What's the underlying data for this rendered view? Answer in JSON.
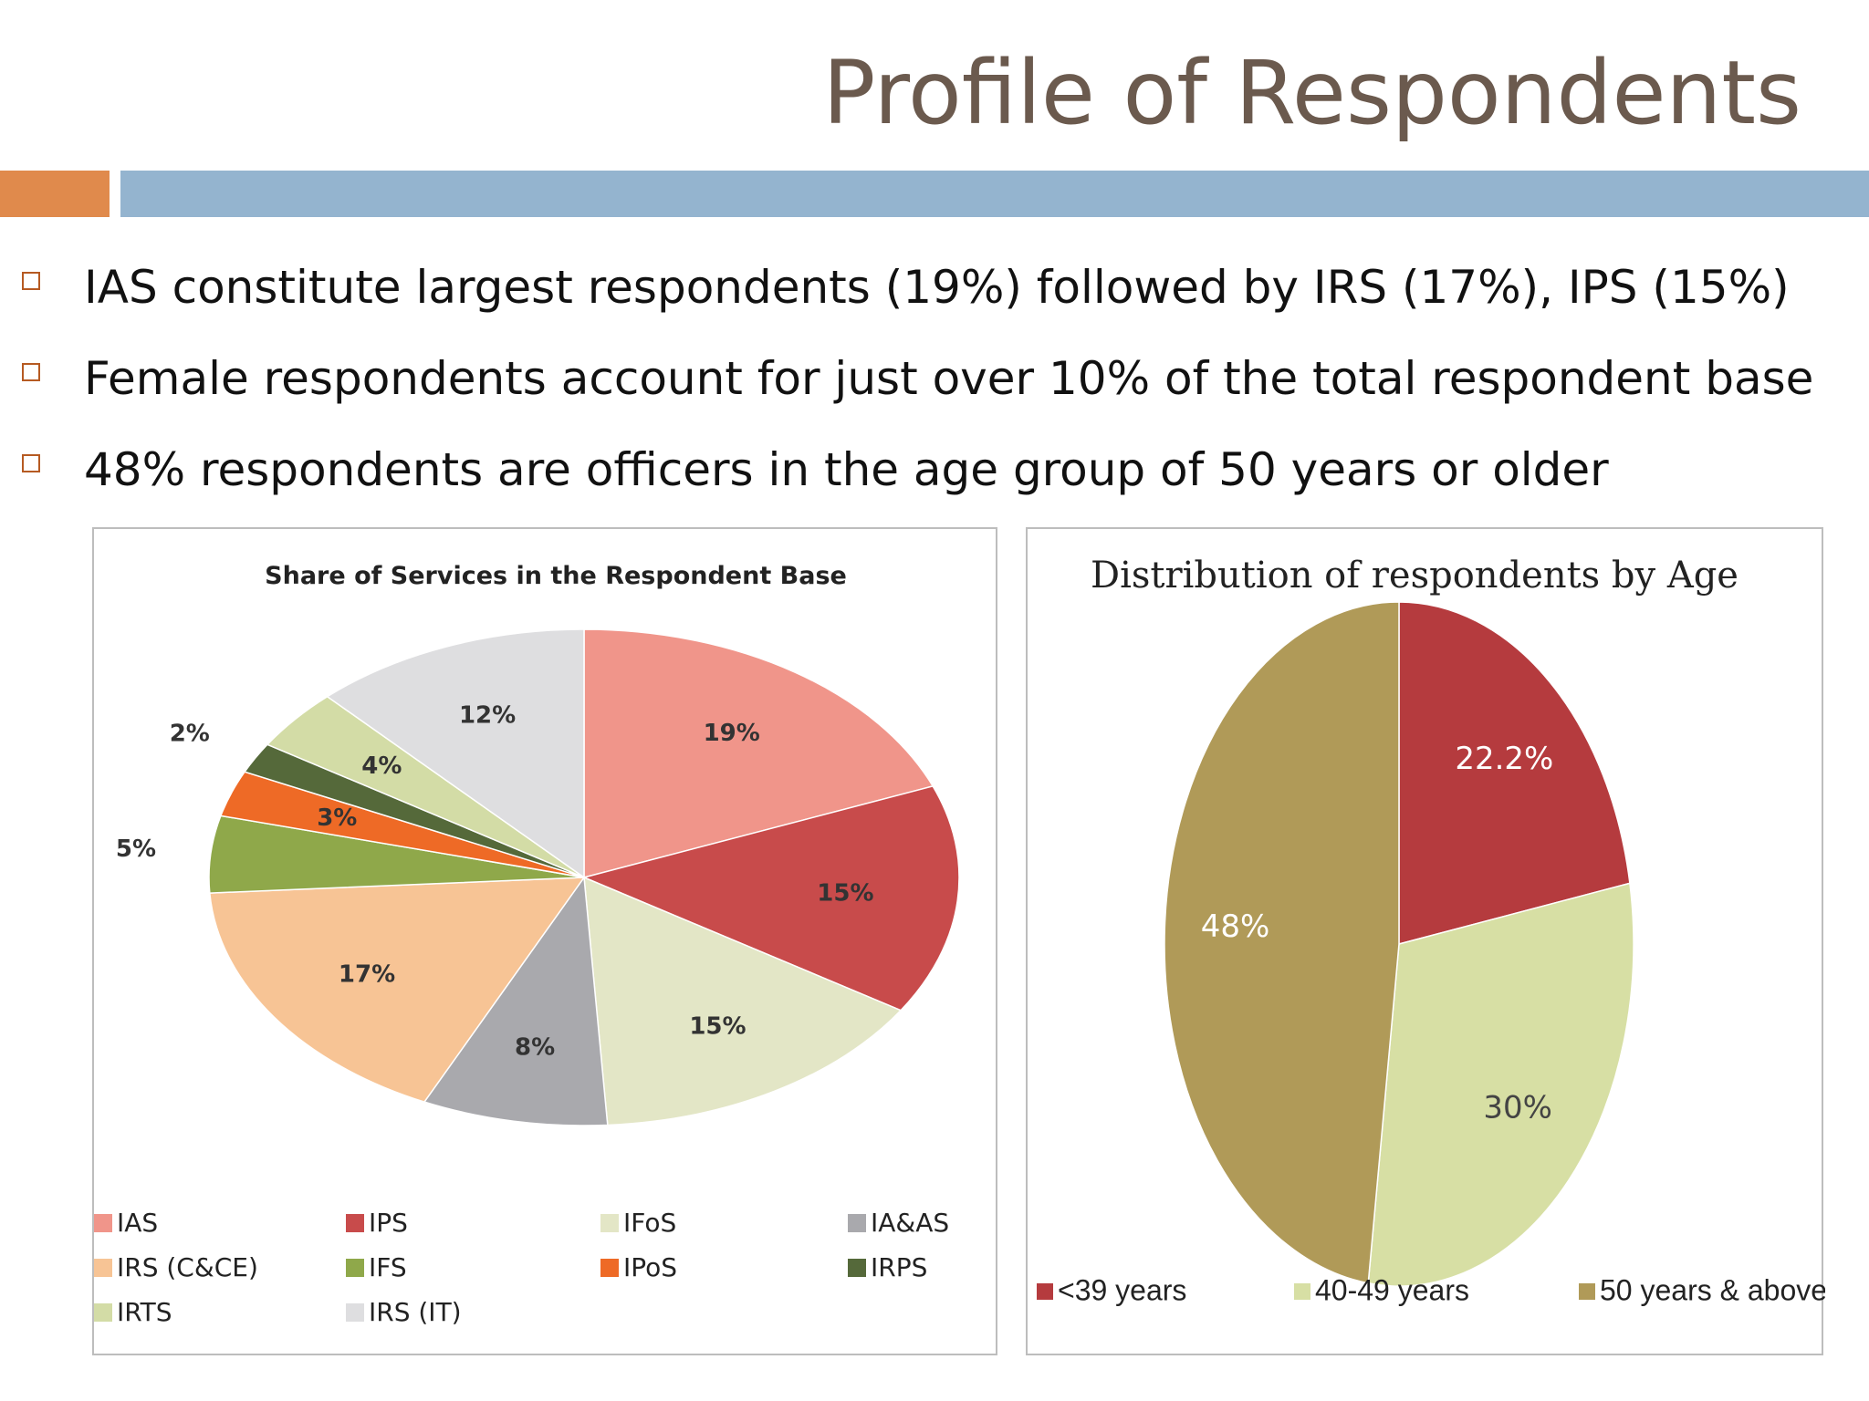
{
  "slide": {
    "title": "Profile of Respondents",
    "bullets": [
      "IAS constitute largest respondents (19%) followed by IRS (17%), IPS (15%)",
      "Female respondents account for just over 10% of the total respondent base",
      "48% respondents are officers in the age group of 50 years or older"
    ]
  },
  "chart_data": [
    {
      "type": "pie",
      "title": "Share of Services in the Respondent Base",
      "legend_position": "bottom",
      "start": "12 o'clock, clockwise",
      "slices": [
        {
          "name": "IAS",
          "value": 19,
          "label": "19%",
          "color": "#f0958a"
        },
        {
          "name": "IPS",
          "value": 15,
          "label": "15%",
          "color": "#c84b4b"
        },
        {
          "name": "IFoS",
          "value": 15,
          "label": "15%",
          "color": "#e3e6c6"
        },
        {
          "name": "IA&AS",
          "value": 8,
          "label": "8%",
          "color": "#a9a9ad"
        },
        {
          "name": "IRS (C&CE)",
          "value": 17,
          "label": "17%",
          "color": "#f7c495"
        },
        {
          "name": "IFS",
          "value": 5,
          "label": "5%",
          "color": "#8fa84a"
        },
        {
          "name": "IPoS",
          "value": 3,
          "label": "3%",
          "color": "#ee6a26"
        },
        {
          "name": "IRPS",
          "value": 2,
          "label": "2%",
          "color": "#55693a"
        },
        {
          "name": "IRTS",
          "value": 4,
          "label": "4%",
          "color": "#d3dca6"
        },
        {
          "name": "IRS (IT)",
          "value": 12,
          "label": "12%",
          "color": "#dedee0"
        }
      ]
    },
    {
      "type": "pie",
      "title": "Distribution of respondents by Age",
      "legend_position": "bottom",
      "start": "12 o'clock, clockwise",
      "slices": [
        {
          "name": "<39 years",
          "value": 22.2,
          "label": "22.2%",
          "color": "#b53b3e"
        },
        {
          "name": "40-49 years",
          "value": 30,
          "label": "30%",
          "color": "#d7dfa4"
        },
        {
          "name": "50 years & above",
          "value": 48,
          "label": "48%",
          "color": "#b09a58"
        }
      ]
    }
  ]
}
